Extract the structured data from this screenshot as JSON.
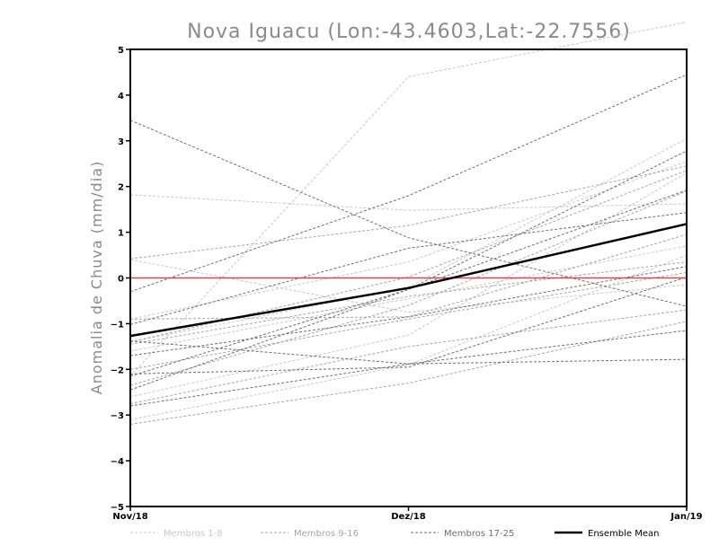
{
  "chart_data": {
    "type": "line",
    "title": "Nova Iguacu (Lon:-43.4603,Lat:-22.7556)",
    "xlabel": "",
    "ylabel": "Anomalia de Chuva (mm/dia)",
    "categories": [
      "Nov/18",
      "Dez/18",
      "Jan/19"
    ],
    "ylim": [
      -5,
      5
    ],
    "yticks": [
      -5,
      -4,
      -3,
      -2,
      -1,
      0,
      1,
      2,
      3,
      4,
      5
    ],
    "zero_line_color": "#e8413c",
    "groups": [
      {
        "name": "Membros 1-8",
        "color": "#c8c8c8",
        "series": [
          [
            -2.15,
            4.4,
            5.6
          ],
          [
            1.82,
            1.48,
            1.62
          ],
          [
            -1.4,
            -0.2,
            3.05
          ],
          [
            -2.6,
            -1.25,
            2.3
          ],
          [
            0.4,
            -0.75,
            -0.15
          ],
          [
            -1.6,
            -0.45,
            0.7
          ],
          [
            -0.9,
            0.35,
            2.55
          ],
          [
            -3.1,
            -1.9,
            0.5
          ]
        ]
      },
      {
        "name": "Membros 9-16",
        "color": "#a6a6a6",
        "series": [
          [
            -1.4,
            0.02,
            2.35
          ],
          [
            -2.0,
            -0.9,
            0.12
          ],
          [
            0.42,
            1.15,
            2.45
          ],
          [
            -0.9,
            -0.85,
            0.95
          ],
          [
            -2.35,
            -0.6,
            1.9
          ],
          [
            -1.45,
            -0.4,
            0.35
          ],
          [
            -2.75,
            -1.5,
            -0.7
          ],
          [
            -3.2,
            -2.3,
            -0.95
          ]
        ]
      },
      {
        "name": "Membros 17-25",
        "color": "#6e6e6e",
        "series": [
          [
            3.45,
            0.88,
            -0.62
          ],
          [
            -0.3,
            1.8,
            4.45
          ],
          [
            -1.02,
            0.65,
            1.43
          ],
          [
            -2.15,
            -0.25,
            2.78
          ],
          [
            -1.38,
            -1.88,
            -1.78
          ],
          [
            -1.7,
            -0.85,
            0.25
          ],
          [
            -2.45,
            -0.25,
            1.92
          ],
          [
            -2.8,
            -1.88,
            -1.15
          ],
          [
            -2.1,
            -1.95,
            0.02
          ]
        ]
      }
    ],
    "ensemble_mean": {
      "name": "Ensemble Mean",
      "color": "#000000",
      "values": [
        -1.27,
        -0.22,
        1.18
      ]
    }
  }
}
